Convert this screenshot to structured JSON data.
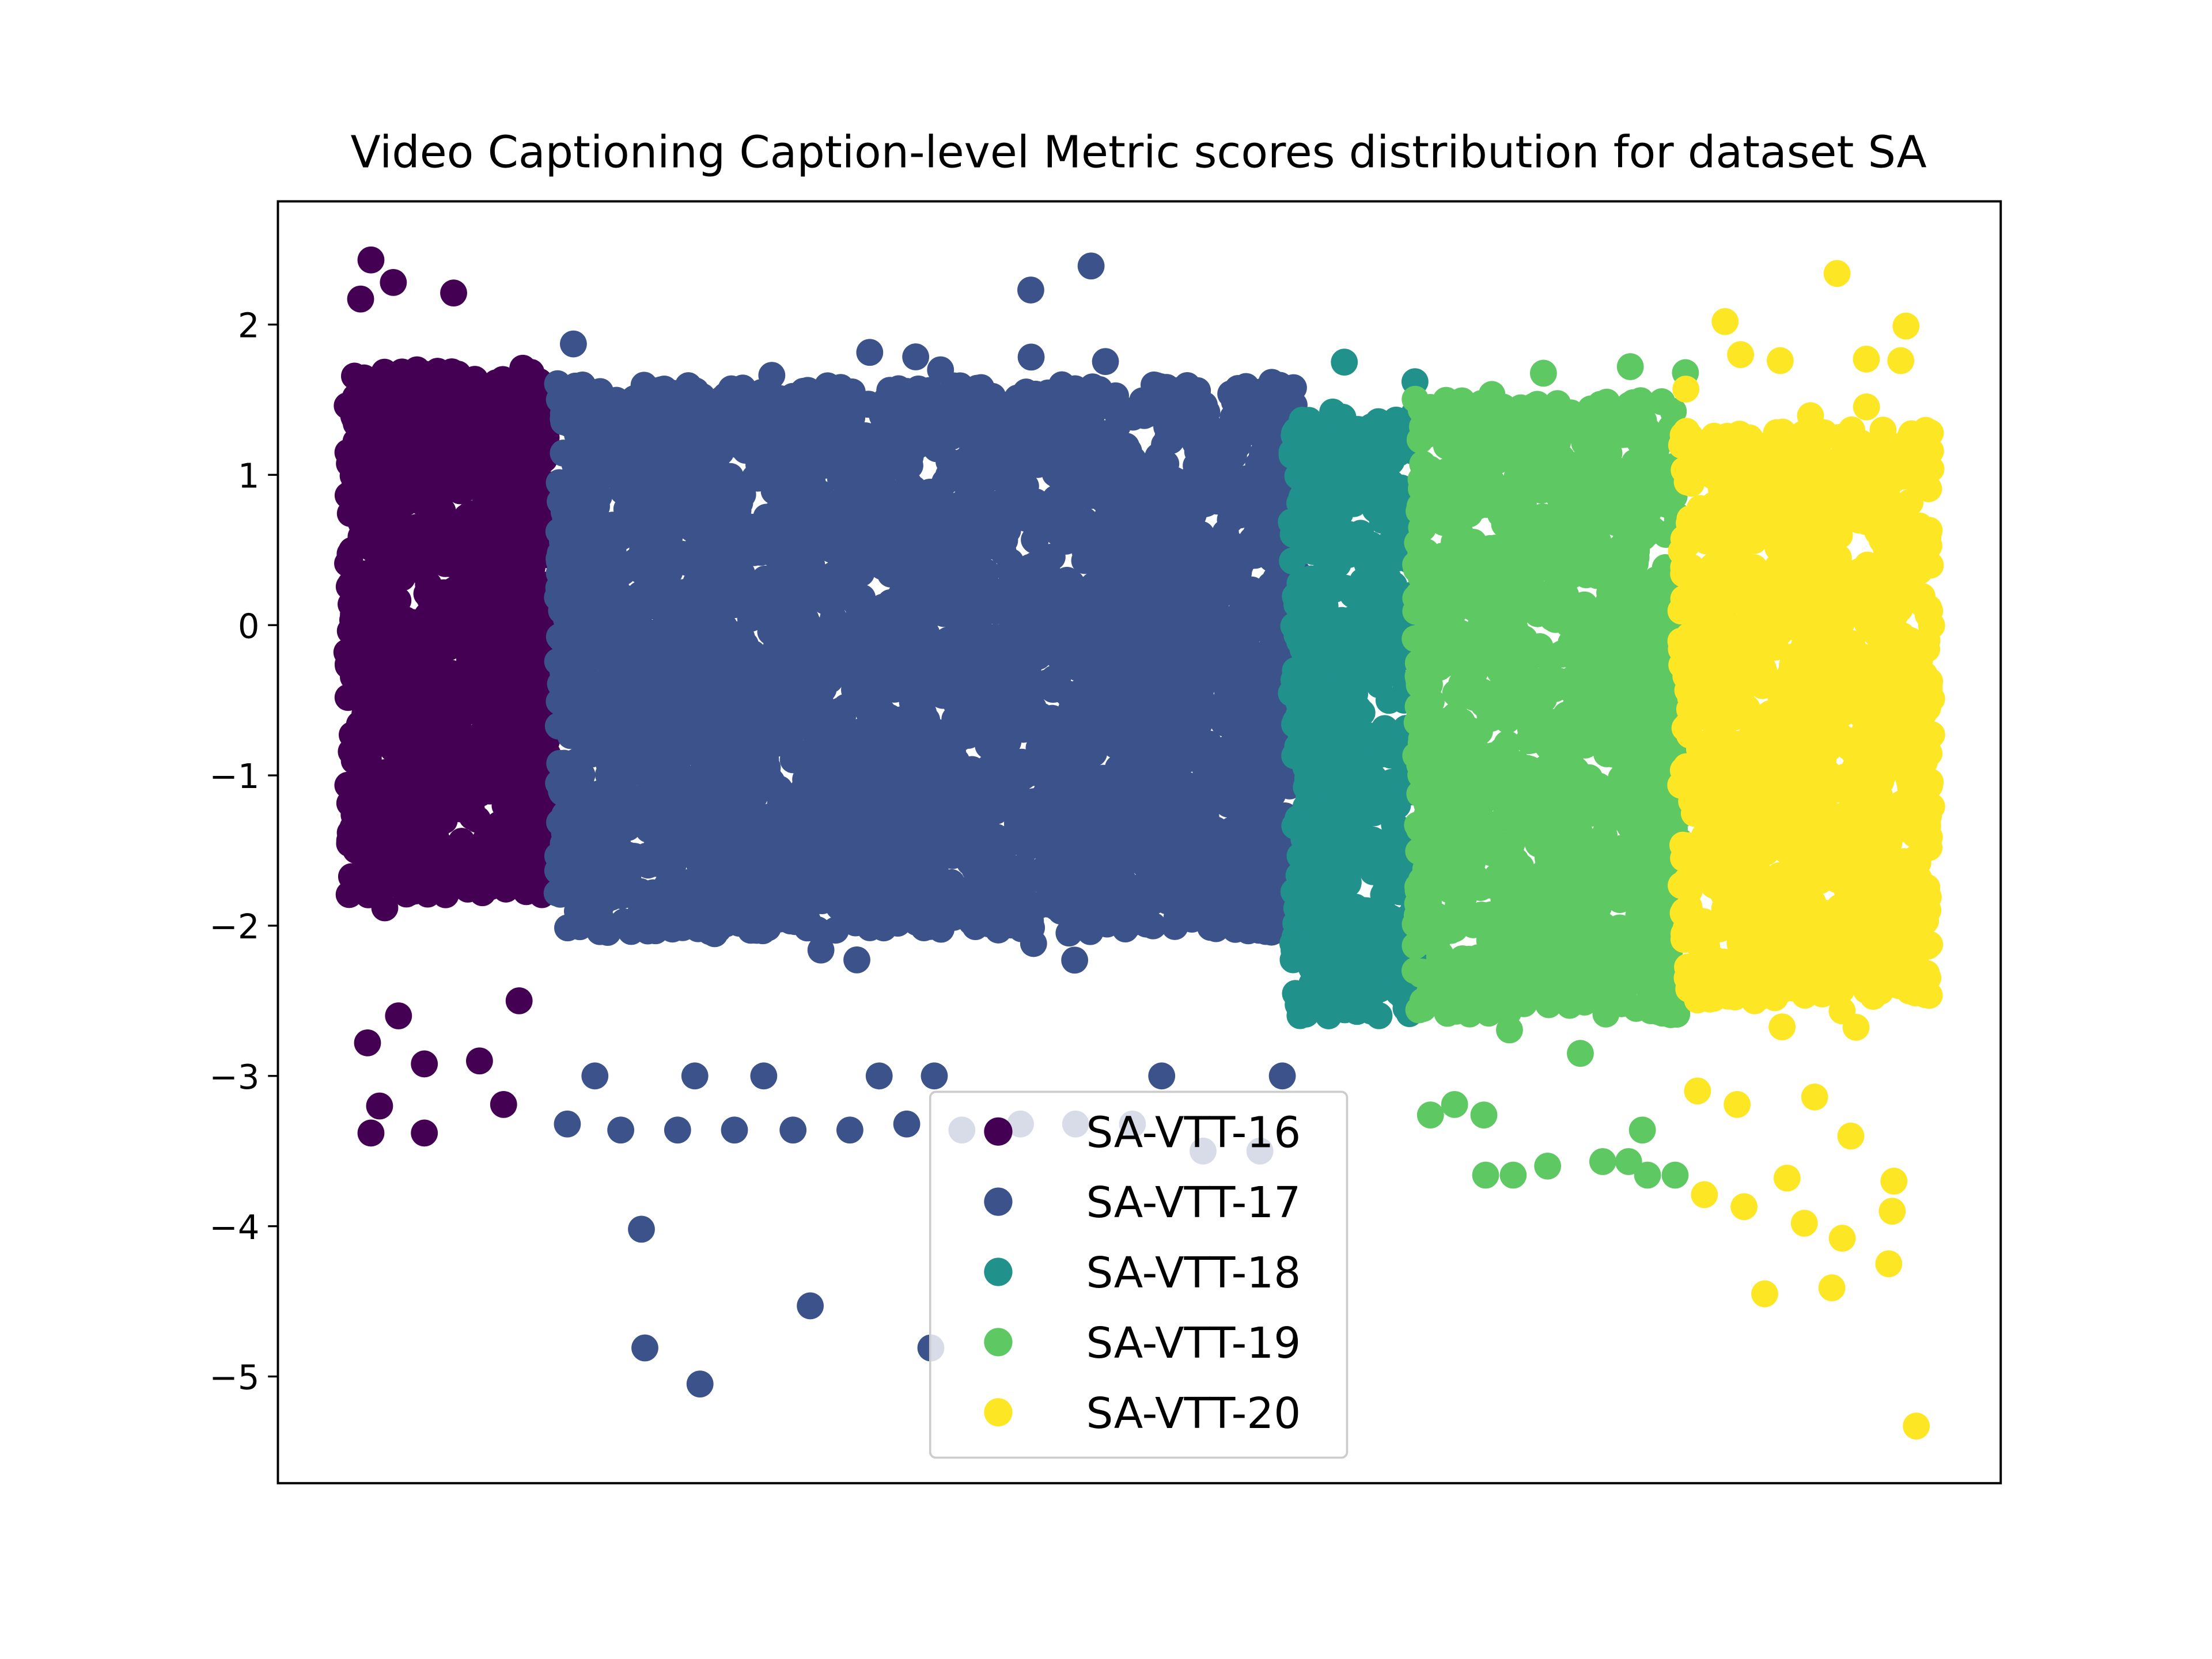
{
  "chart_data": {
    "type": "scatter",
    "title": "Video Captioning Caption-level Metric scores distribution for dataset SA",
    "xlabel": "",
    "ylabel": "",
    "x_ticks_visible": false,
    "ylim": [
      -5.71,
      2.82
    ],
    "xlim": [
      0,
      1000
    ],
    "y_ticks": [
      2,
      1,
      0,
      -1,
      -2,
      -3,
      -4,
      -5
    ],
    "y_tick_labels": [
      "2",
      "1",
      "0",
      "−1",
      "−2",
      "−3",
      "−4",
      "−5"
    ],
    "grid": false,
    "legend_position": "lower-center",
    "series": [
      {
        "name": "SA-VTT-16",
        "color": "#440154",
        "x_range": [
          40,
          158
        ],
        "y_core": [
          -1.8,
          1.7
        ],
        "outliers": [
          [
            54,
            2.43
          ],
          [
            67,
            2.28
          ],
          [
            102,
            2.21
          ],
          [
            48,
            2.17
          ],
          [
            54,
            -3.38
          ],
          [
            85,
            -3.38
          ],
          [
            59,
            -3.2
          ],
          [
            131,
            -3.19
          ],
          [
            52,
            -2.78
          ],
          [
            85,
            -2.92
          ],
          [
            117,
            -2.9
          ],
          [
            70,
            -2.6
          ],
          [
            140,
            -2.5
          ]
        ]
      },
      {
        "name": "SA-VTT-17",
        "color": "#3b528b",
        "x_range": [
          162,
          592
        ],
        "y_core": [
          -2.05,
          1.6
        ],
        "outliers": [
          [
            472,
            2.39
          ],
          [
            437,
            2.23
          ],
          [
            211,
            -4.02
          ],
          [
            213,
            -4.81
          ],
          [
            245,
            -5.05
          ],
          [
            309,
            -4.53
          ],
          [
            379,
            -4.81
          ],
          [
            168,
            -3.32
          ],
          [
            199,
            -3.36
          ],
          [
            232,
            -3.36
          ],
          [
            265,
            -3.36
          ],
          [
            299,
            -3.36
          ],
          [
            332,
            -3.36
          ],
          [
            365,
            -3.32
          ],
          [
            397,
            -3.36
          ],
          [
            431,
            -3.32
          ],
          [
            463,
            -3.32
          ],
          [
            496,
            -3.32
          ],
          [
            537,
            -3.5
          ],
          [
            570,
            -3.5
          ],
          [
            184,
            -3.0
          ],
          [
            242,
            -3.0
          ],
          [
            282,
            -3.0
          ],
          [
            349,
            -3.0
          ],
          [
            381,
            -3.0
          ],
          [
            513,
            -3.0
          ],
          [
            583,
            -3.0
          ]
        ]
      },
      {
        "name": "SA-VTT-18",
        "color": "#21918c",
        "x_range": [
          588,
          662
        ],
        "y_core": [
          -2.6,
          1.4
        ],
        "outliers": [
          [
            619,
            1.75
          ],
          [
            660,
            1.62
          ]
        ]
      },
      {
        "name": "SA-VTT-19",
        "color": "#5ec962",
        "x_range": [
          660,
          814
        ],
        "y_core": [
          -2.6,
          1.5
        ],
        "outliers": [
          [
            785,
            1.72
          ],
          [
            817,
            1.68
          ],
          [
            669,
            -3.26
          ],
          [
            683,
            -3.19
          ],
          [
            700,
            -3.26
          ],
          [
            701,
            -3.66
          ],
          [
            717,
            -3.66
          ],
          [
            737,
            -3.6
          ],
          [
            769,
            -3.57
          ],
          [
            784,
            -3.57
          ],
          [
            792,
            -3.36
          ],
          [
            795,
            -3.66
          ],
          [
            811,
            -3.66
          ],
          [
            756,
            -2.85
          ]
        ]
      },
      {
        "name": "SA-VTT-20",
        "color": "#fde725",
        "x_range": [
          814,
          960
        ],
        "y_core": [
          -2.5,
          1.3
        ],
        "outliers": [
          [
            905,
            2.34
          ],
          [
            840,
            2.02
          ],
          [
            945,
            1.99
          ],
          [
            849,
            1.8
          ],
          [
            872,
            1.76
          ],
          [
            922,
            1.77
          ],
          [
            942,
            1.76
          ],
          [
            951,
            -5.33
          ],
          [
            863,
            -4.45
          ],
          [
            902,
            -4.41
          ],
          [
            935,
            -4.25
          ],
          [
            908,
            -4.08
          ],
          [
            886,
            -3.98
          ],
          [
            937,
            -3.9
          ],
          [
            938,
            -3.7
          ],
          [
            913,
            -3.4
          ],
          [
            824,
            -3.1
          ],
          [
            847,
            -3.19
          ],
          [
            892,
            -3.14
          ],
          [
            828,
            -3.79
          ],
          [
            851,
            -3.87
          ],
          [
            876,
            -3.68
          ]
        ]
      }
    ]
  }
}
